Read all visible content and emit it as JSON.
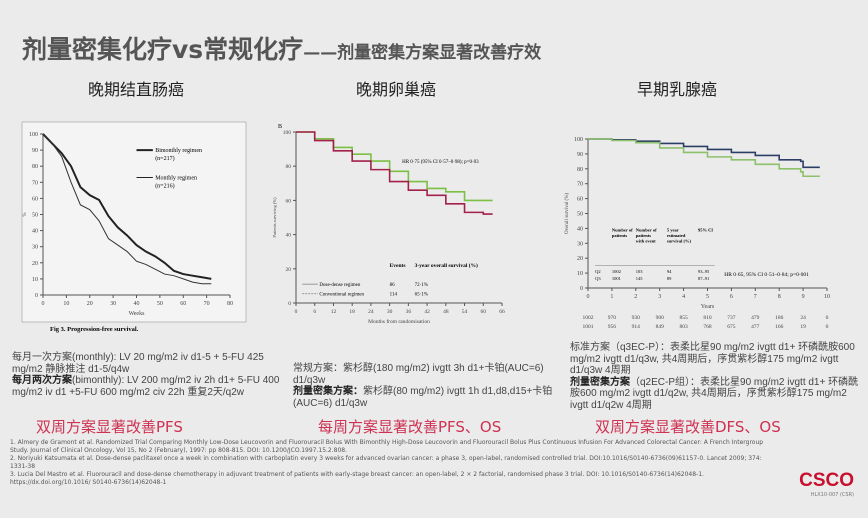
{
  "title": {
    "main": "剂量密集化疗vs常规化疗",
    "sub": "——剂量密集方案显著改善疗效"
  },
  "panels": [
    {
      "heading": "晚期结直肠癌",
      "regimen1_label": "每月一次方案",
      "regimen1_text": "(monthly): LV 20 mg/m2 iv d1-5 + 5-FU 425 mg/m2 静脉推注 d1-5/q4w",
      "regimen2_label": "每月两次方案",
      "regimen2_text": "(bimonthly): LV 200 mg/m2 iv 2h d1+ 5-FU 400 mg/m2 iv d1 +5-FU 600 mg/m2 civ 22h 重复2天/q2w",
      "conclusion": "双周方案显著改善PFS"
    },
    {
      "heading": "晚期卵巢癌",
      "regimen1_label": "常规方案：",
      "regimen1_text": "紫杉醇(180 mg/m2) ivgtt 3h d1+卡铂(AUC=6) d1/q3w",
      "regimen2_label": "剂量密集方案：",
      "regimen2_text": "紫杉醇(80 mg/m2) ivgtt 1h d1,d8,d15+卡铂(AUC=6) d1/q3w",
      "conclusion": "每周方案显著改善PFS、OS"
    },
    {
      "heading": "早期乳腺癌",
      "regimen1_label": "标准方案",
      "regimen1_text": "（q3EC-P）：表柔比星90 mg/m2 ivgtt d1+ 环磷酰胺600 mg/m2 ivgtt d1/q3w, 共4周期后，序贯紫杉醇175 mg/m2 ivgtt d1/q3w  4周期",
      "regimen2_label": "剂量密集方案",
      "regimen2_text": "（q2EC-P组）：表柔比星90 mg/m2 ivgtt d1+ 环磷酰胺600 mg/m2 ivgtt d1/q2w, 共4周期后，序贯紫杉醇175 mg/m2 ivgtt d1/q2w  4周期",
      "conclusion": "双周方案显著改善DFS、OS"
    }
  ],
  "references": [
    "1.   Almery de Gramont et al.  Randomized Trial Comparing Monthly Low-Dose Leucovorin and Fluorouracil Bolus With Bimonthly High-Dose Leucovorin and Fluorouracil Bolus Plus Continuous Infusion For Advanced Colorectal Cancer: A French Intergroup Study. Journal of Clinical Oncology, Vol 15, No 2 (February), 1997: pp 808-815. DOI: 10.1200/JCO.1997.15.2.808.",
    "2.   Noriyuki Katsumata et al.  Dose-dense paclitaxel once a week in combination with carboplatin every 3 weeks for advanced ovarian cancer: a phase 3, open-label, randomised controlled trial. DOI:10.1016/S0140-6736(09)61157-0. Lancet 2009; 374: 1331-38",
    "3.   Lucia Del Mastro et al. Fluorouracil and dose-dense chemotherapy in adjuvant treatment of patients with early-stage breast cancer: an open-label, 2 × 2 factorial, randomised phase 3 trial. DOI: 10.1016/S0140-6736(14)62048-1. https://dx.doi.org/10.1016/ S0140-6736(14)62048-1"
  ],
  "logo": {
    "text": "CSCO",
    "code": "HLX10-007 (CSR)"
  },
  "chart_data": [
    {
      "type": "line",
      "caption": "Fig 3.  Progression-free survival.",
      "xlabel": "Weeks",
      "ylabel": "%",
      "xlim": [
        0,
        80
      ],
      "ylim": [
        0,
        100
      ],
      "xticks": [
        0,
        10,
        20,
        30,
        40,
        50,
        60,
        70,
        80
      ],
      "yticks": [
        0,
        10,
        20,
        30,
        40,
        50,
        60,
        70,
        80,
        90,
        100
      ],
      "legend_placement": "top-right",
      "x": [
        0,
        4,
        8,
        12,
        16,
        20,
        24,
        28,
        32,
        36,
        40,
        44,
        48,
        52,
        56,
        60,
        64,
        68,
        72
      ],
      "series": [
        {
          "name": "Bimonthly regimen",
          "n": "(n=217)",
          "color": "#222222",
          "width": 2,
          "values": [
            100,
            94,
            88,
            80,
            67,
            62,
            59,
            49,
            42,
            37,
            31,
            27,
            24,
            20,
            15,
            13,
            12,
            11,
            10
          ]
        },
        {
          "name": "Monthly regimen",
          "n": "(n=216)",
          "color": "#333333",
          "width": 1,
          "values": [
            100,
            94,
            86,
            70,
            56,
            53,
            46,
            35,
            31,
            27,
            21,
            19,
            16,
            13,
            12,
            10,
            8,
            7,
            7
          ]
        }
      ]
    },
    {
      "type": "line",
      "panel_letter": "B",
      "xlabel": "Months from randomisation",
      "ylabel": "Patients surviving (%)",
      "xlim": [
        0,
        66
      ],
      "ylim": [
        0,
        100
      ],
      "xticks": [
        0,
        6,
        12,
        18,
        24,
        30,
        36,
        42,
        48,
        54,
        60,
        66
      ],
      "yticks": [
        0,
        20,
        40,
        60,
        80,
        100
      ],
      "annotation": "HR 0·75 (95% CI 0·57–0·98); p=0·03",
      "legend_headers": [
        "Events",
        "3-year overall survival (%)"
      ],
      "x": [
        0,
        6,
        12,
        18,
        24,
        30,
        36,
        42,
        48,
        54,
        60,
        63
      ],
      "series": [
        {
          "name": "Dose-dense regimen",
          "events": "86",
          "survival": "72·1%",
          "color": "#7bc043",
          "values": [
            100,
            96,
            91,
            87,
            83,
            77,
            71,
            67,
            65,
            60,
            60,
            60
          ]
        },
        {
          "name": "Conventional regimen",
          "events": "114",
          "survival": "65·1%",
          "color": "#a3204a",
          "values": [
            100,
            95,
            89,
            83,
            78,
            71,
            66,
            63,
            58,
            53,
            52,
            52
          ]
        }
      ]
    },
    {
      "type": "line",
      "xlabel": "Years",
      "ylabel": "Overall survival (%)",
      "xlim": [
        0,
        10
      ],
      "ylim": [
        0,
        100
      ],
      "xticks": [
        0,
        1,
        2,
        3,
        4,
        5,
        6,
        7,
        8,
        9,
        10
      ],
      "yticks": [
        0,
        10,
        20,
        30,
        40,
        50,
        60,
        70,
        80,
        90,
        100
      ],
      "annotation": "HR 0·65, 95% CI 0·51–0·84; p=0·001",
      "table_headers": [
        "Number of patients",
        "Number of patients with event",
        "5 year estimated survival (%)",
        "95% CI"
      ],
      "x": [
        0,
        1,
        2,
        3,
        4,
        5,
        6,
        7,
        8,
        8.9,
        9,
        9.7
      ],
      "series": [
        {
          "name": "Q2",
          "color": "#2c3e66",
          "values": [
            100,
            99.5,
            98.5,
            97,
            95,
            93,
            91,
            89,
            86,
            85,
            81,
            81
          ],
          "table": [
            "1002",
            "103",
            "94",
            "93–95"
          ],
          "at_risk": [
            "1002",
            "970",
            "930",
            "900",
            "855",
            "810",
            "737",
            "479",
            "186",
            "24",
            "0"
          ]
        },
        {
          "name": "Q3",
          "color": "#8cc06a",
          "values": [
            100,
            99,
            97.5,
            94,
            91,
            88,
            86,
            83,
            80,
            78,
            75,
            75
          ],
          "table": [
            "1001",
            "145",
            "89",
            "87–91"
          ],
          "at_risk": [
            "1001",
            "956",
            "914",
            "849",
            "803",
            "768",
            "675",
            "477",
            "166",
            "19",
            "0"
          ]
        }
      ]
    }
  ]
}
